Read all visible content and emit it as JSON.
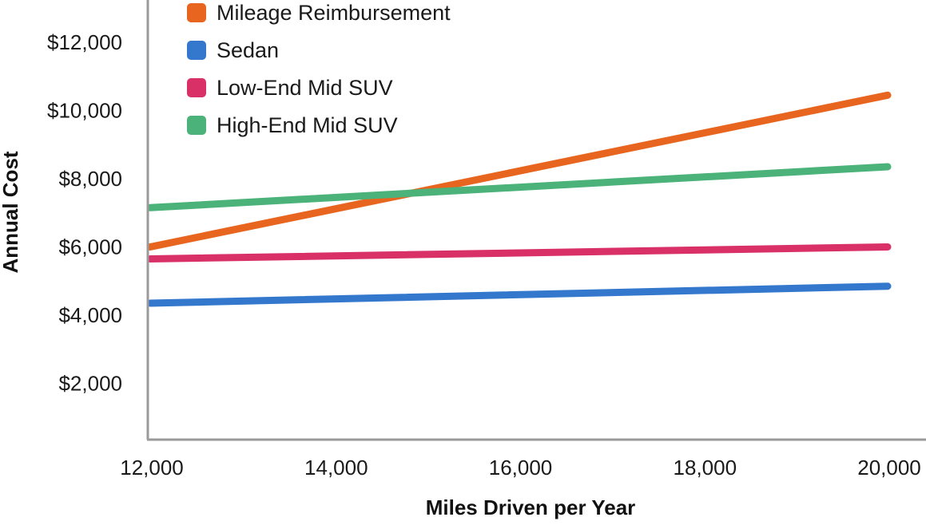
{
  "chart_data": {
    "type": "line",
    "title": "",
    "xlabel": "Miles Driven per Year",
    "ylabel": "Annual Cost",
    "x": [
      12000,
      20000
    ],
    "xlim": [
      12000,
      20000
    ],
    "ylim": [
      0,
      13000
    ],
    "x_ticks": [
      {
        "value": 12000,
        "label": "12,000"
      },
      {
        "value": 14000,
        "label": "14,000"
      },
      {
        "value": 16000,
        "label": "16,000"
      },
      {
        "value": 18000,
        "label": "18,000"
      },
      {
        "value": 20000,
        "label": "20,000"
      }
    ],
    "y_ticks": [
      {
        "value": 2000,
        "label": "$2,000"
      },
      {
        "value": 4000,
        "label": "$4,000"
      },
      {
        "value": 6000,
        "label": "$6,000"
      },
      {
        "value": 8000,
        "label": "$8,000"
      },
      {
        "value": 10000,
        "label": "$10,000"
      },
      {
        "value": 12000,
        "label": "$12,000"
      }
    ],
    "grid": false,
    "legend_position": "top-left",
    "series": [
      {
        "name": "Mileage Reimbursement",
        "color": "#e8651f",
        "values": [
          6000,
          10450
        ]
      },
      {
        "name": "Sedan",
        "color": "#3478cd",
        "values": [
          4350,
          4850
        ]
      },
      {
        "name": "Low-End Mid SUV",
        "color": "#d93068",
        "values": [
          5650,
          6000
        ]
      },
      {
        "name": "High-End Mid SUV",
        "color": "#4bb27a",
        "values": [
          7150,
          8350
        ]
      }
    ]
  }
}
